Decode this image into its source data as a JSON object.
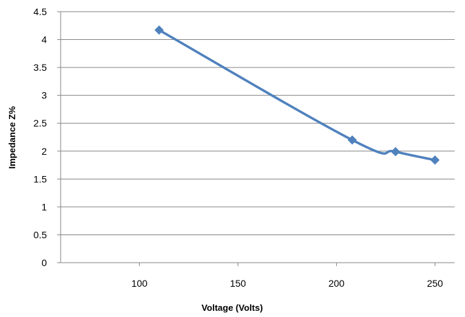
{
  "chart_data": {
    "type": "line",
    "xlabel": "Voltage (Volts)",
    "ylabel": "Impedance Z%",
    "xlim": [
      60,
      260
    ],
    "ylim": [
      0,
      4.5
    ],
    "xticks": [
      "100",
      "150",
      "200",
      "250"
    ],
    "yticks": [
      "0",
      "0.5",
      "1",
      "1.5",
      "2",
      "2.5",
      "3",
      "3.5",
      "4",
      "4.5"
    ],
    "grid": "horizontal",
    "legend": "none",
    "series": [
      {
        "x": [
          110,
          208,
          230,
          250
        ],
        "y": [
          4.17,
          2.2,
          1.99,
          1.84
        ]
      }
    ],
    "colors": {
      "line": "#4f81bd",
      "grid": "#868686",
      "axis": "#868686"
    }
  }
}
